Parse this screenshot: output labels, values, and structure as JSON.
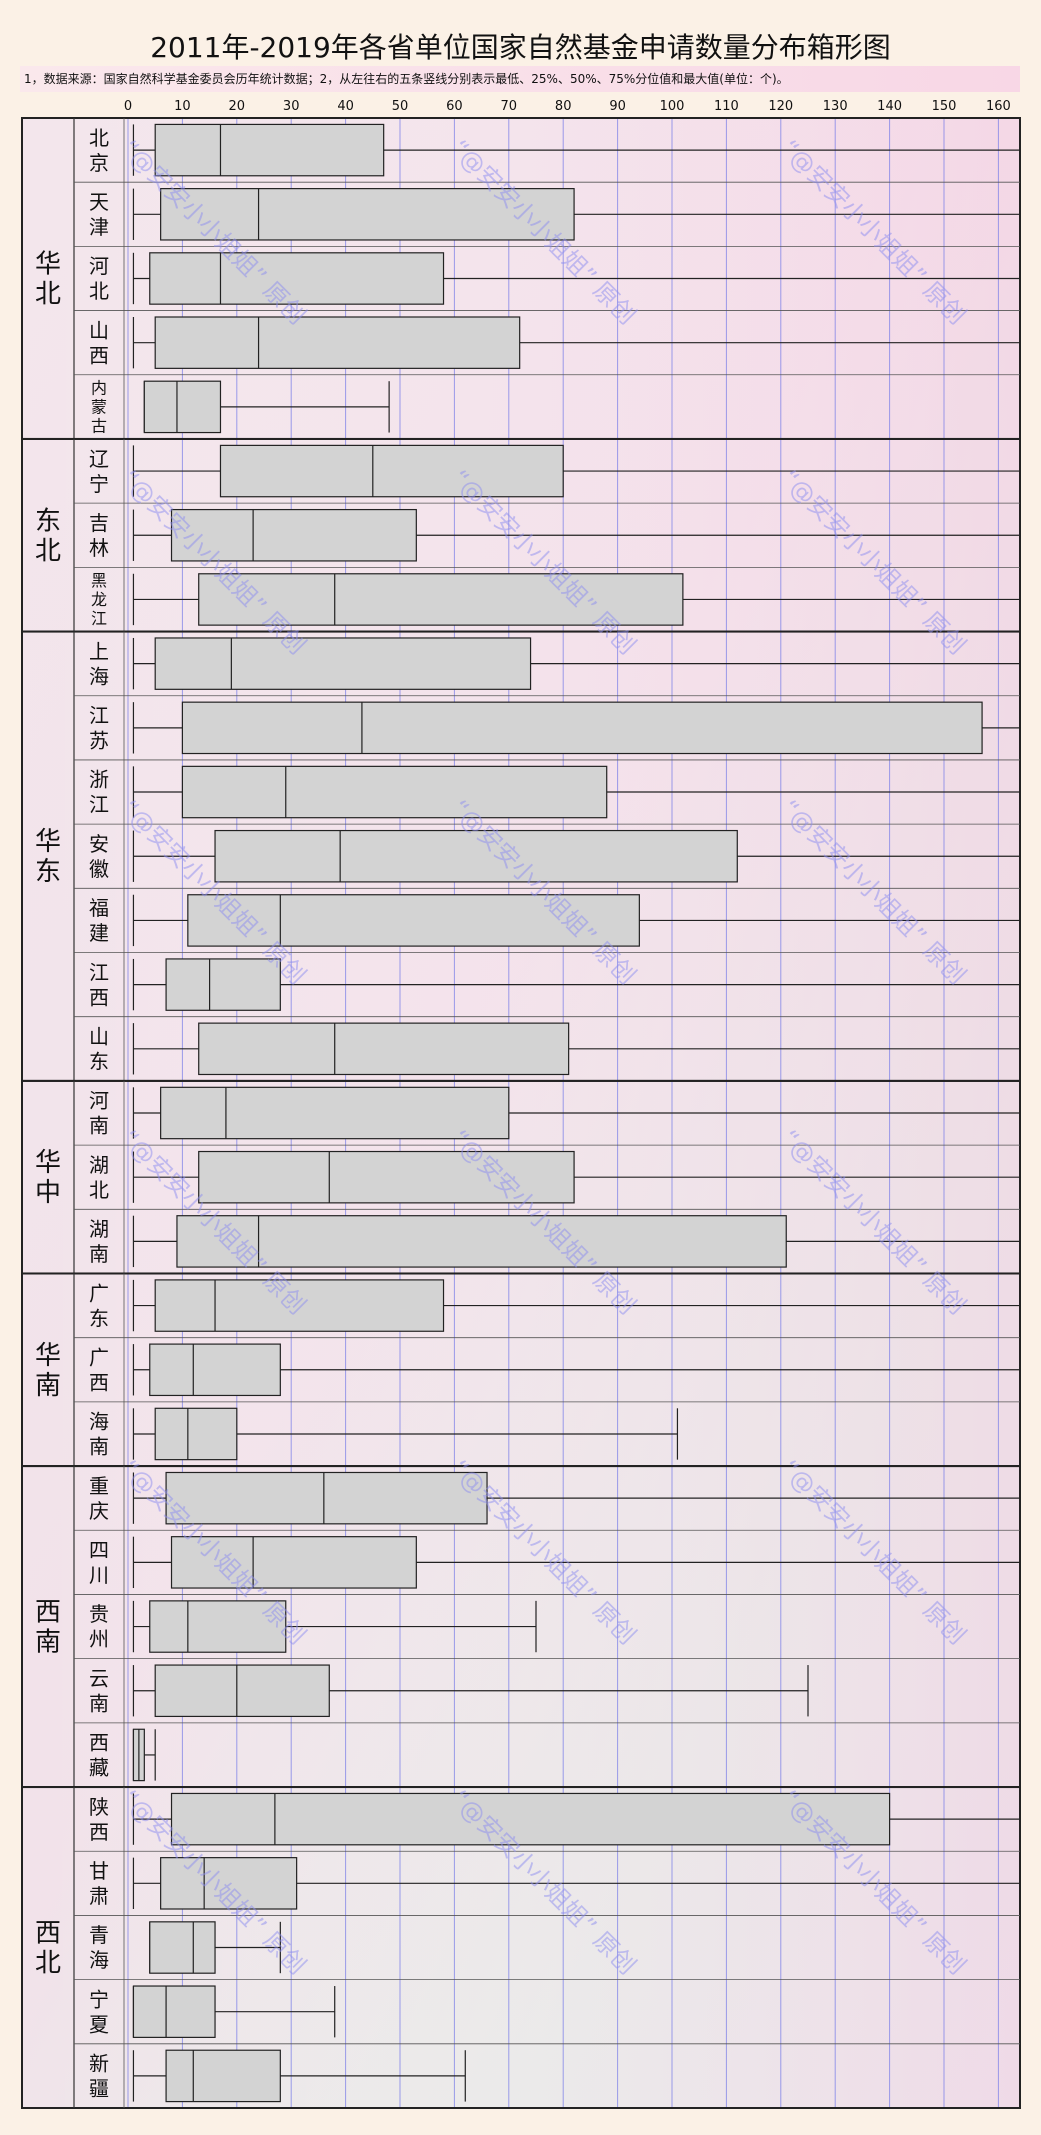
{
  "title": "2011年-2019年各省单位国家自然基金申请数量分布箱形图",
  "note": "1，数据来源：国家自然科学基金委员会历年统计数据；2，从左往右的五条竖线分别表示最低、25%、50%、75%分位值和最大值(单位：个)。",
  "watermark": "“@安安小小姐姐”  原创",
  "chart_data": {
    "type": "box",
    "title": "2011年-2019年各省单位国家自然基金申请数量分布箱形图",
    "x_ticks": [
      0,
      10,
      20,
      30,
      40,
      50,
      60,
      70,
      80,
      90,
      100,
      110,
      120,
      130,
      140,
      150,
      160
    ],
    "xlim": [
      0,
      165
    ],
    "grid": "vertical",
    "regions": [
      {
        "name": "华北",
        "provinces": [
          {
            "name": "北京",
            "min": 1,
            "q1": 5,
            "median": 17,
            "q3": 47,
            "max": 165
          },
          {
            "name": "天津",
            "min": 1,
            "q1": 6,
            "median": 24,
            "q3": 82,
            "max": 165
          },
          {
            "name": "河北",
            "min": 1,
            "q1": 4,
            "median": 17,
            "q3": 58,
            "max": 165
          },
          {
            "name": "山西",
            "min": 1,
            "q1": 5,
            "median": 24,
            "q3": 72,
            "max": 165
          },
          {
            "name": "内蒙古",
            "min": 3,
            "q1": 3,
            "median": 9,
            "q3": 17,
            "max": 48
          }
        ]
      },
      {
        "name": "东北",
        "provinces": [
          {
            "name": "辽宁",
            "min": 1,
            "q1": 17,
            "median": 45,
            "q3": 80,
            "max": 165
          },
          {
            "name": "吉林",
            "min": 1,
            "q1": 8,
            "median": 23,
            "q3": 53,
            "max": 165
          },
          {
            "name": "黑龙江",
            "min": 1,
            "q1": 13,
            "median": 38,
            "q3": 102,
            "max": 165
          }
        ]
      },
      {
        "name": "华东",
        "provinces": [
          {
            "name": "上海",
            "min": 1,
            "q1": 5,
            "median": 19,
            "q3": 74,
            "max": 165
          },
          {
            "name": "江苏",
            "min": 1,
            "q1": 10,
            "median": 43,
            "q3": 157,
            "max": 165
          },
          {
            "name": "浙江",
            "min": 1,
            "q1": 10,
            "median": 29,
            "q3": 88,
            "max": 165
          },
          {
            "name": "安徽",
            "min": 1,
            "q1": 16,
            "median": 39,
            "q3": 112,
            "max": 165
          },
          {
            "name": "福建",
            "min": 1,
            "q1": 11,
            "median": 28,
            "q3": 94,
            "max": 165
          },
          {
            "name": "江西",
            "min": 1,
            "q1": 7,
            "median": 15,
            "q3": 28,
            "max": 165
          },
          {
            "name": "山东",
            "min": 1,
            "q1": 13,
            "median": 38,
            "q3": 81,
            "max": 165
          }
        ]
      },
      {
        "name": "华中",
        "provinces": [
          {
            "name": "河南",
            "min": 1,
            "q1": 6,
            "median": 18,
            "q3": 70,
            "max": 165
          },
          {
            "name": "湖北",
            "min": 1,
            "q1": 13,
            "median": 37,
            "q3": 82,
            "max": 165
          },
          {
            "name": "湖南",
            "min": 1,
            "q1": 9,
            "median": 24,
            "q3": 121,
            "max": 165
          }
        ]
      },
      {
        "name": "华南",
        "provinces": [
          {
            "name": "广东",
            "min": 1,
            "q1": 5,
            "median": 16,
            "q3": 58,
            "max": 165
          },
          {
            "name": "广西",
            "min": 1,
            "q1": 4,
            "median": 12,
            "q3": 28,
            "max": 165
          },
          {
            "name": "海南",
            "min": 1,
            "q1": 5,
            "median": 11,
            "q3": 20,
            "max": 101
          }
        ]
      },
      {
        "name": "西南",
        "provinces": [
          {
            "name": "重庆",
            "min": 1,
            "q1": 7,
            "median": 36,
            "q3": 66,
            "max": 165
          },
          {
            "name": "四川",
            "min": 1,
            "q1": 8,
            "median": 23,
            "q3": 53,
            "max": 165
          },
          {
            "name": "贵州",
            "min": 1,
            "q1": 4,
            "median": 11,
            "q3": 29,
            "max": 75
          },
          {
            "name": "云南",
            "min": 1,
            "q1": 5,
            "median": 20,
            "q3": 37,
            "max": 125
          },
          {
            "name": "西藏",
            "min": 1,
            "q1": 1,
            "median": 2,
            "q3": 3,
            "max": 5
          }
        ]
      },
      {
        "name": "西北",
        "provinces": [
          {
            "name": "陕西",
            "min": 1,
            "q1": 8,
            "median": 27,
            "q3": 140,
            "max": 165
          },
          {
            "name": "甘肃",
            "min": 1,
            "q1": 6,
            "median": 14,
            "q3": 31,
            "max": 165
          },
          {
            "name": "青海",
            "min": 4,
            "q1": 4,
            "median": 12,
            "q3": 16,
            "max": 28
          },
          {
            "name": "宁夏",
            "min": 1,
            "q1": 1,
            "median": 7,
            "q3": 16,
            "max": 38
          },
          {
            "name": "新疆",
            "min": 1,
            "q1": 7,
            "median": 12,
            "q3": 28,
            "max": 62
          }
        ]
      }
    ]
  }
}
